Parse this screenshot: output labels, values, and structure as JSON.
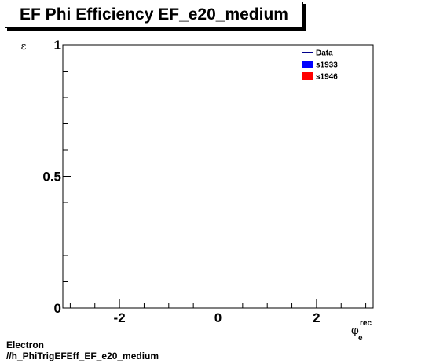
{
  "chart_data": {
    "type": "line",
    "title": "EF Phi Efficiency EF_e20_medium",
    "ylabel": "ε",
    "xlabel": {
      "main": "φ",
      "sub": "e",
      "sup": "rec"
    },
    "xlim": [
      -3.15,
      3.15
    ],
    "ylim": [
      0,
      1
    ],
    "x_ticks": [
      {
        "value": -2,
        "label": "-2"
      },
      {
        "value": 0,
        "label": "0"
      },
      {
        "value": 2,
        "label": "2"
      }
    ],
    "y_ticks": [
      {
        "value": 0,
        "label": "0"
      },
      {
        "value": 0.5,
        "label": "0.5"
      },
      {
        "value": 1,
        "label": "1"
      }
    ],
    "grid": false,
    "legend_position": "top-right",
    "series": [
      {
        "name": "Data",
        "style": "line",
        "color": "#00008b",
        "values": []
      },
      {
        "name": "s1933",
        "style": "fill",
        "color": "#0000ff",
        "values": []
      },
      {
        "name": "s1946",
        "style": "fill",
        "color": "#ff0000",
        "values": []
      }
    ]
  },
  "footer": {
    "line1": "Electron",
    "line2": "//h_PhiTrigEFEff_EF_e20_medium"
  }
}
